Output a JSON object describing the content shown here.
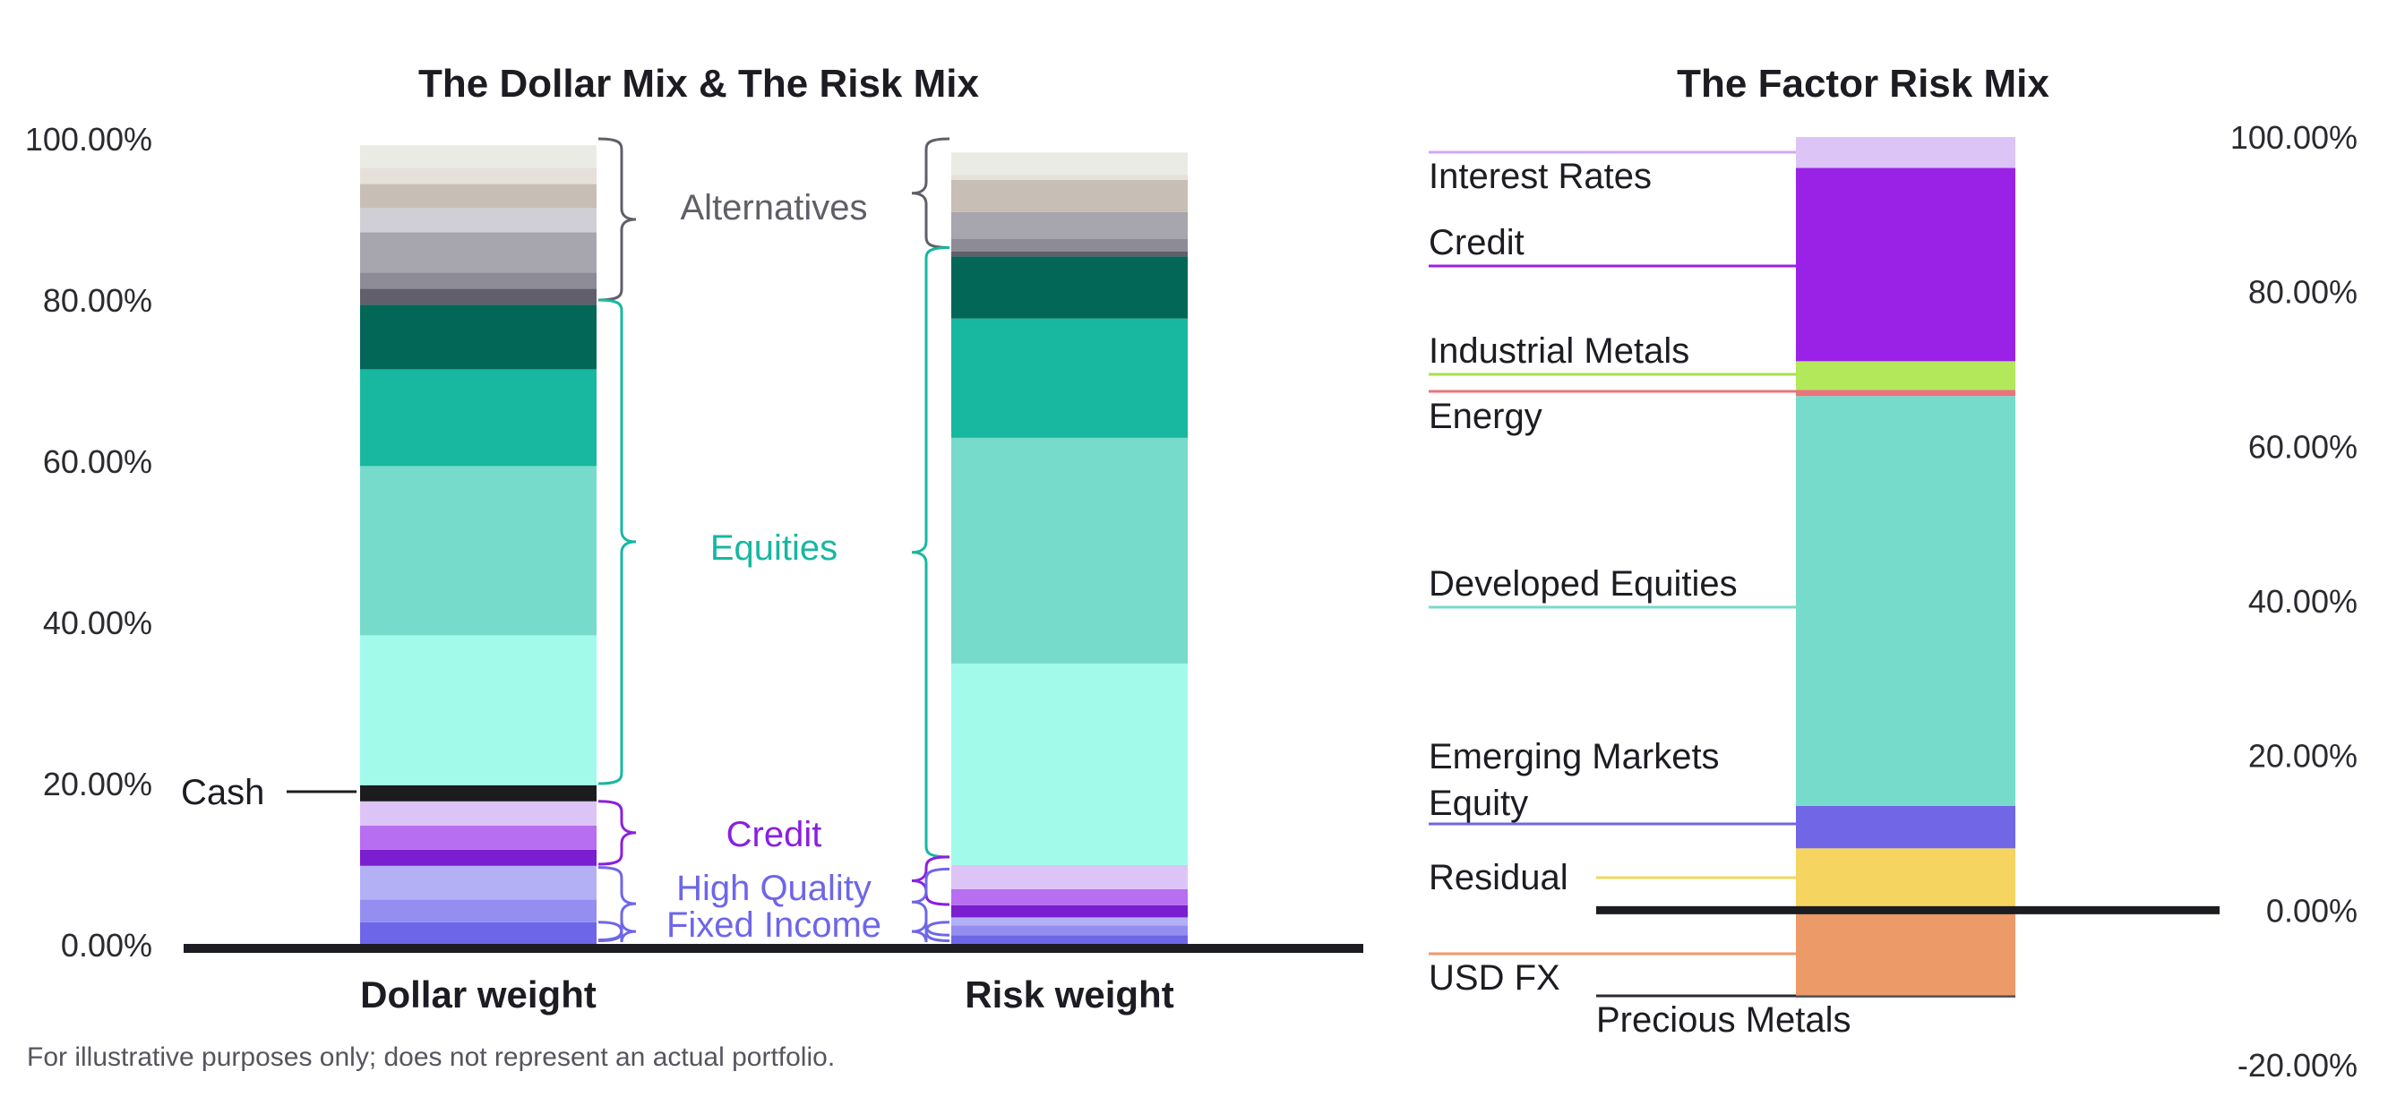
{
  "chart_data": [
    {
      "type": "bar",
      "stacked": true,
      "title": "The Dollar Mix & The Risk Mix",
      "categories": [
        "Dollar weight",
        "Risk weight"
      ],
      "ylim": [
        0,
        100
      ],
      "yticks": [
        "0.00%",
        "20.00%",
        "40.00%",
        "60.00%",
        "80.00%",
        "100.00%"
      ],
      "series": [
        {
          "name": "High Quality Fixed Income 1",
          "color": "#6e66e8",
          "values": [
            2.8,
            1.2
          ]
        },
        {
          "name": "High Quality Fixed Income 2",
          "color": "#938ef0",
          "values": [
            2.8,
            1.2
          ]
        },
        {
          "name": "High Quality Fixed Income 3",
          "color": "#b3b0f5",
          "values": [
            4.2,
            1.0
          ]
        },
        {
          "name": "Credit 1",
          "color": "#7a1ecf",
          "values": [
            2.0,
            1.5
          ]
        },
        {
          "name": "Credit 2",
          "color": "#b76ef0",
          "values": [
            3.0,
            2.0
          ]
        },
        {
          "name": "Credit 3",
          "color": "#dcc4f7",
          "values": [
            3.0,
            3.0
          ]
        },
        {
          "name": "Cash",
          "color": "#1c1c1e",
          "values": [
            2.0,
            0.0
          ]
        },
        {
          "name": "Equities 1",
          "color": "#a2faeb",
          "values": [
            18.6,
            25.0
          ]
        },
        {
          "name": "Equities 2",
          "color": "#76dbca",
          "values": [
            21.0,
            28.0
          ]
        },
        {
          "name": "Equities 3",
          "color": "#17b7a0",
          "values": [
            12.0,
            14.8
          ]
        },
        {
          "name": "Equities 4",
          "color": "#036758",
          "values": [
            8.0,
            7.7
          ]
        },
        {
          "name": "Alternatives 1",
          "color": "#615f6b",
          "values": [
            2.0,
            0.6
          ]
        },
        {
          "name": "Alternatives 2",
          "color": "#8d8b95",
          "values": [
            2.0,
            1.6
          ]
        },
        {
          "name": "Alternatives 3",
          "color": "#a7a5ae",
          "values": [
            5.0,
            3.3
          ]
        },
        {
          "name": "Alternatives 4",
          "color": "#d1cfd6",
          "values": [
            3.0,
            0.0
          ]
        },
        {
          "name": "Alternatives 5",
          "color": "#c7bfb6",
          "values": [
            3.0,
            4.0
          ]
        },
        {
          "name": "Alternatives 6",
          "color": "#e5e0da",
          "values": [
            2.0,
            0.6
          ]
        },
        {
          "name": "Alternatives 7",
          "color": "#ebebe5",
          "values": [
            2.8,
            2.8
          ]
        }
      ],
      "groups": [
        {
          "label": "Alternatives",
          "color": "#5f5f68",
          "range": [
            [
              80.0,
              100
            ],
            [
              86.5,
              100
            ]
          ]
        },
        {
          "label": "Equities",
          "color": "#17b7a0",
          "range": [
            [
              20.0,
              80.0
            ],
            [
              10.9,
              86.5
            ]
          ]
        },
        {
          "label": "Credit",
          "color": "#8a1fe0",
          "range": [
            [
              10.0,
              17.8
            ],
            [
              5.0,
              10.9
            ]
          ]
        },
        {
          "label": "High Quality",
          "color": "#6e66e8",
          "range": [
            [
              0.6,
              9.6
            ],
            [
              1.2,
              9.4
            ]
          ]
        },
        {
          "label": "Fixed Income",
          "color": "#6e66e8",
          "range": [
            [
              0.5,
              2.8
            ],
            [
              0.5,
              2.8
            ]
          ]
        }
      ],
      "callout": {
        "label": "Cash",
        "value": 19.0
      },
      "footnote": "For illustrative purposes only; does not represent an actual portfolio."
    },
    {
      "type": "bar",
      "stacked": true,
      "title": "The Factor Risk Mix",
      "ylim": [
        -20,
        100
      ],
      "yticks": [
        "-20.00%",
        "0.00%",
        "20.00%",
        "40.00%",
        "60.00%",
        "80.00%",
        "100.00%"
      ],
      "series": [
        {
          "name": "Residual",
          "color": "#f5d560",
          "value": 8.0
        },
        {
          "name": "Emerging Markets Equity",
          "color": "#7066e6",
          "value": 5.5
        },
        {
          "name": "Developed Equities",
          "color": "#76dbca",
          "value": 53.0
        },
        {
          "name": "Energy",
          "color": "#e8747c",
          "value": 0.8
        },
        {
          "name": "Industrial Metals",
          "color": "#b3e85a",
          "value": 3.7
        },
        {
          "name": "Credit",
          "color": "#9a22e6",
          "value": 25.0
        },
        {
          "name": "Interest Rates",
          "color": "#dcc4f7",
          "value": 4.0
        },
        {
          "name": "USD FX",
          "color": "#ec9a68",
          "value": -11.0
        },
        {
          "name": "Precious Metals",
          "color": "#505058",
          "value": -0.3
        }
      ]
    }
  ]
}
